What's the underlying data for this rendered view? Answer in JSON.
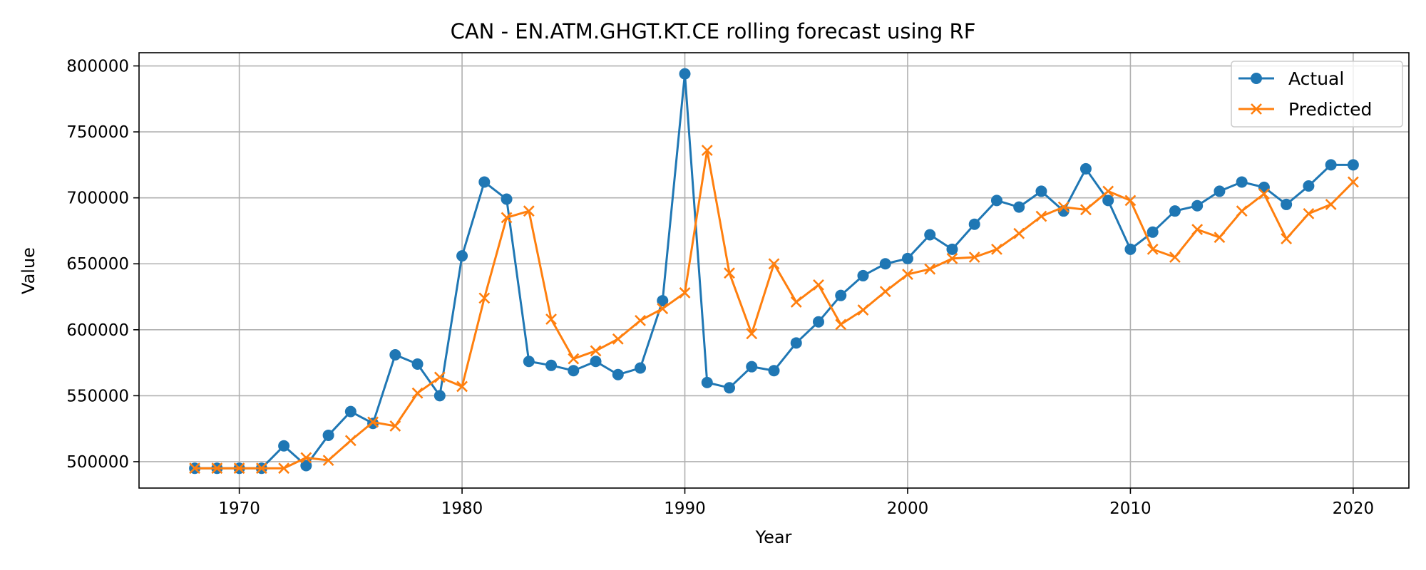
{
  "chart_data": {
    "type": "line",
    "title": "CAN - EN.ATM.GHGT.KT.CE rolling forecast using RF",
    "xlabel": "Year",
    "ylabel": "Value",
    "xlim": [
      1965.5,
      2022.5
    ],
    "ylim": [
      480000,
      810000
    ],
    "xticks": [
      1970,
      1980,
      1990,
      2000,
      2010,
      2020
    ],
    "yticks": [
      500000,
      550000,
      600000,
      650000,
      700000,
      750000,
      800000
    ],
    "grid": true,
    "legend_position": "top-right",
    "x": [
      1968,
      1969,
      1970,
      1971,
      1972,
      1973,
      1974,
      1975,
      1976,
      1977,
      1978,
      1979,
      1980,
      1981,
      1982,
      1983,
      1984,
      1985,
      1986,
      1987,
      1988,
      1989,
      1990,
      1991,
      1992,
      1993,
      1994,
      1995,
      1996,
      1997,
      1998,
      1999,
      2000,
      2001,
      2002,
      2003,
      2004,
      2005,
      2006,
      2007,
      2008,
      2009,
      2010,
      2011,
      2012,
      2013,
      2014,
      2015,
      2016,
      2017,
      2018,
      2019,
      2020
    ],
    "series": [
      {
        "name": "Actual",
        "color": "#1f77b4",
        "marker": "circle",
        "values": [
          495000,
          495000,
          495000,
          495000,
          512000,
          497000,
          520000,
          538000,
          529000,
          581000,
          574000,
          550000,
          656000,
          712000,
          699000,
          576000,
          573000,
          569000,
          576000,
          566000,
          571000,
          622000,
          794000,
          560000,
          556000,
          572000,
          569000,
          590000,
          606000,
          626000,
          641000,
          650000,
          654000,
          672000,
          661000,
          680000,
          698000,
          693000,
          705000,
          690000,
          722000,
          698000,
          661000,
          674000,
          690000,
          694000,
          705000,
          712000,
          708000,
          695000,
          709000,
          725000,
          725000
        ]
      },
      {
        "name": "Predicted",
        "color": "#ff7f0e",
        "marker": "x",
        "values": [
          495000,
          495000,
          495000,
          495000,
          495000,
          503000,
          501000,
          516000,
          530000,
          527000,
          552000,
          564000,
          557000,
          624000,
          685000,
          690000,
          608000,
          578000,
          584000,
          593000,
          607000,
          616000,
          628000,
          736000,
          643000,
          597000,
          650000,
          621000,
          634000,
          604000,
          615000,
          629000,
          642000,
          646000,
          654000,
          655000,
          661000,
          673000,
          686000,
          693000,
          691000,
          705000,
          698000,
          661000,
          655000,
          676000,
          670000,
          690000,
          703000,
          669000,
          688000,
          695000,
          712000
        ]
      }
    ]
  }
}
